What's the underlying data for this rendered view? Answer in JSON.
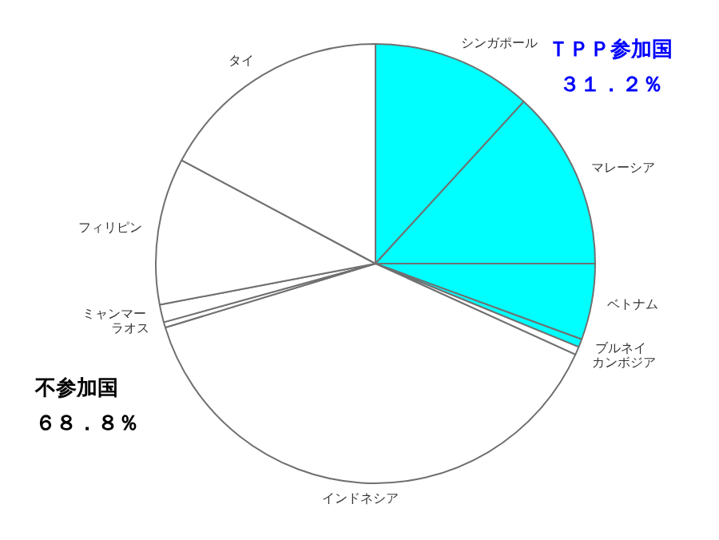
{
  "chart_data": {
    "type": "pie",
    "categories": [
      "シンガポール",
      "マレーシア",
      "ベトナム",
      "ブルネイ",
      "カンボジア",
      "インドネシア",
      "ラオス",
      "ミャンマー",
      "フィリピン",
      "タイ"
    ],
    "values": [
      11.8,
      13.2,
      5.6,
      0.6,
      0.6,
      38.5,
      0.4,
      1.3,
      10.8,
      17.2
    ],
    "colors": [
      "#00ffff",
      "#00ffff",
      "#00ffff",
      "#00ffff",
      "#ffffff",
      "#ffffff",
      "#ffffff",
      "#ffffff",
      "#ffffff",
      "#ffffff"
    ],
    "annotations": [
      "ＴＰＰ参加国",
      "３１．２％",
      "不参加国",
      "６８．８％"
    ],
    "legend": false
  }
}
